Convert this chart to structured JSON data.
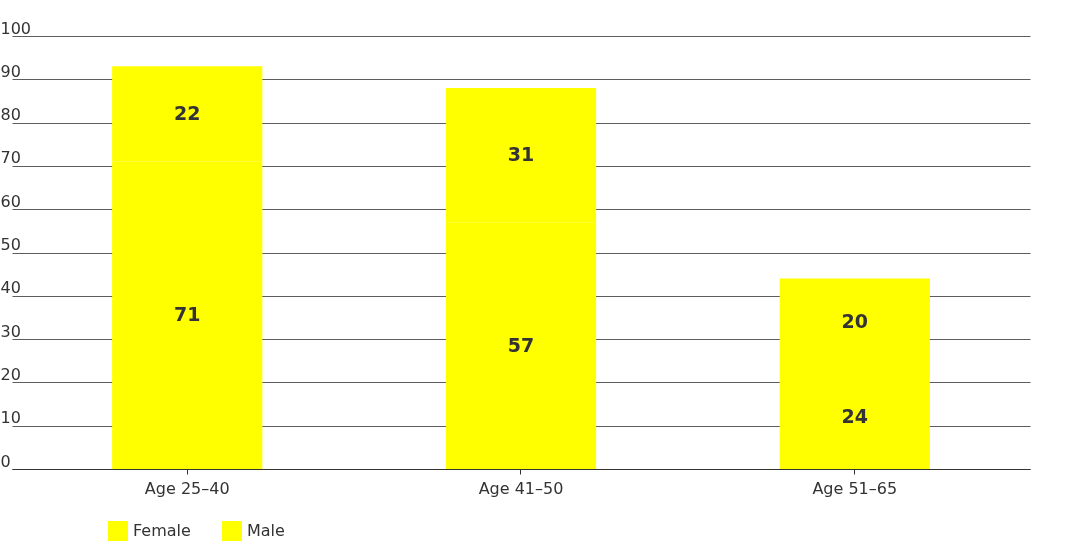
{
  "chart_data": {
    "type": "bar",
    "stacked": true,
    "categories": [
      "Age 25–40",
      "Age 41–50",
      "Age 51–65"
    ],
    "series": [
      {
        "name": "Female",
        "color": "#ffff00",
        "values": [
          71,
          57,
          24
        ]
      },
      {
        "name": "Male",
        "color": "#ffff00",
        "values": [
          22,
          31,
          20
        ]
      }
    ],
    "ylim": [
      0,
      100
    ],
    "yticks": [
      0,
      10,
      20,
      30,
      40,
      50,
      60,
      70,
      80,
      90,
      100
    ],
    "grid": "y",
    "legend": "bottom left",
    "data_labels": true
  }
}
